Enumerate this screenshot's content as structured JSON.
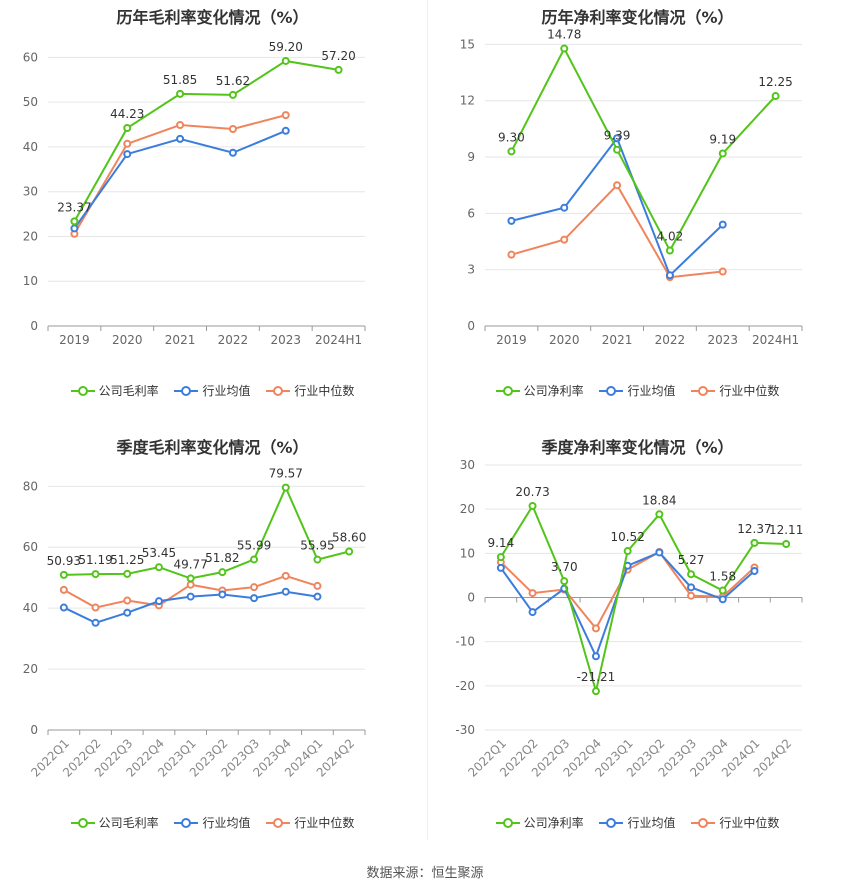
{
  "source": "数据来源：恒生聚源",
  "colors": {
    "company": "#52c41a",
    "avg": "#3b7ddd",
    "median": "#f0845c"
  },
  "legends": {
    "gross": [
      "公司毛利率",
      "行业均值",
      "行业中位数"
    ],
    "net": [
      "公司净利率",
      "行业均值",
      "行业中位数"
    ]
  },
  "chart_data": [
    {
      "type": "line",
      "title": "历年毛利率变化情况（%）",
      "categories": [
        "2019",
        "2020",
        "2021",
        "2022",
        "2023",
        "2024H1"
      ],
      "yticks": [
        0,
        10,
        20,
        30,
        40,
        50,
        60
      ],
      "ylim": [
        0,
        65
      ],
      "series": [
        {
          "name": "公司毛利率",
          "values": [
            23.37,
            44.23,
            51.85,
            51.62,
            59.2,
            57.2
          ]
        },
        {
          "name": "行业均值",
          "values": [
            21.8,
            38.4,
            41.8,
            38.7,
            43.6,
            null
          ]
        },
        {
          "name": "行业中位数",
          "values": [
            20.6,
            40.7,
            44.9,
            44.0,
            47.1,
            null
          ]
        }
      ],
      "labels": [
        "23.37",
        "44.23",
        "51.85",
        "51.62",
        "59.20",
        "57.20"
      ]
    },
    {
      "type": "line",
      "title": "历年净利率变化情况（%）",
      "categories": [
        "2019",
        "2020",
        "2021",
        "2022",
        "2023",
        "2024H1"
      ],
      "yticks": [
        0,
        3,
        6,
        9,
        12,
        15
      ],
      "ylim": [
        0,
        15.5
      ],
      "series": [
        {
          "name": "公司净利率",
          "values": [
            9.3,
            14.78,
            9.39,
            4.02,
            9.19,
            12.25
          ]
        },
        {
          "name": "行业均值",
          "values": [
            5.6,
            6.3,
            10.0,
            2.7,
            5.4,
            null
          ]
        },
        {
          "name": "行业中位数",
          "values": [
            3.8,
            4.6,
            7.5,
            2.6,
            2.9,
            null
          ]
        }
      ],
      "labels": [
        "9.30",
        "14.78",
        "9.39",
        "4.02",
        "9.19",
        "12.25"
      ]
    },
    {
      "type": "line",
      "title": "季度毛利率变化情况（%）",
      "categories": [
        "2022Q1",
        "2022Q2",
        "2022Q3",
        "2022Q4",
        "2023Q1",
        "2023Q2",
        "2023Q3",
        "2023Q4",
        "2024Q1",
        "2024Q2"
      ],
      "yticks": [
        0,
        20,
        40,
        60,
        80
      ],
      "ylim": [
        0,
        87
      ],
      "series": [
        {
          "name": "公司毛利率",
          "values": [
            50.93,
            51.19,
            51.25,
            53.45,
            49.77,
            51.82,
            55.99,
            79.57,
            55.95,
            58.6
          ]
        },
        {
          "name": "行业均值",
          "values": [
            40.2,
            35.2,
            38.5,
            42.3,
            43.8,
            44.5,
            43.3,
            45.4,
            43.8,
            null
          ]
        },
        {
          "name": "行业中位数",
          "values": [
            46.0,
            40.2,
            42.5,
            40.9,
            47.7,
            45.8,
            46.9,
            50.6,
            47.3,
            null
          ]
        }
      ],
      "labels": [
        "50.93",
        "51.19",
        "51.25",
        "53.45",
        "49.77",
        "51.82",
        "55.99",
        "79.57",
        "55.95",
        "58.60"
      ]
    },
    {
      "type": "line",
      "title": "季度净利率变化情况（%）",
      "categories": [
        "2022Q1",
        "2022Q2",
        "2022Q3",
        "2022Q4",
        "2023Q1",
        "2023Q2",
        "2023Q3",
        "2023Q4",
        "2024Q1",
        "2024Q2"
      ],
      "yticks": [
        -30,
        -20,
        -10,
        0,
        10,
        20,
        30
      ],
      "ylim": [
        -30,
        30
      ],
      "series": [
        {
          "name": "公司净利率",
          "values": [
            9.14,
            20.73,
            3.7,
            -21.21,
            10.52,
            18.84,
            5.27,
            1.58,
            12.37,
            12.11
          ]
        },
        {
          "name": "行业均值",
          "values": [
            6.7,
            -3.3,
            2.0,
            -13.3,
            7.2,
            10.2,
            2.3,
            -0.4,
            6.0,
            null
          ]
        },
        {
          "name": "行业中位数",
          "values": [
            8.0,
            1.0,
            1.8,
            -7.0,
            6.3,
            10.3,
            0.4,
            0.2,
            6.8,
            null
          ]
        }
      ],
      "labels": [
        "9.14",
        "20.73",
        "3.70",
        "-21.21",
        "10.52",
        "18.84",
        "5.27",
        "1.58",
        "12.37",
        "12.11"
      ]
    }
  ]
}
